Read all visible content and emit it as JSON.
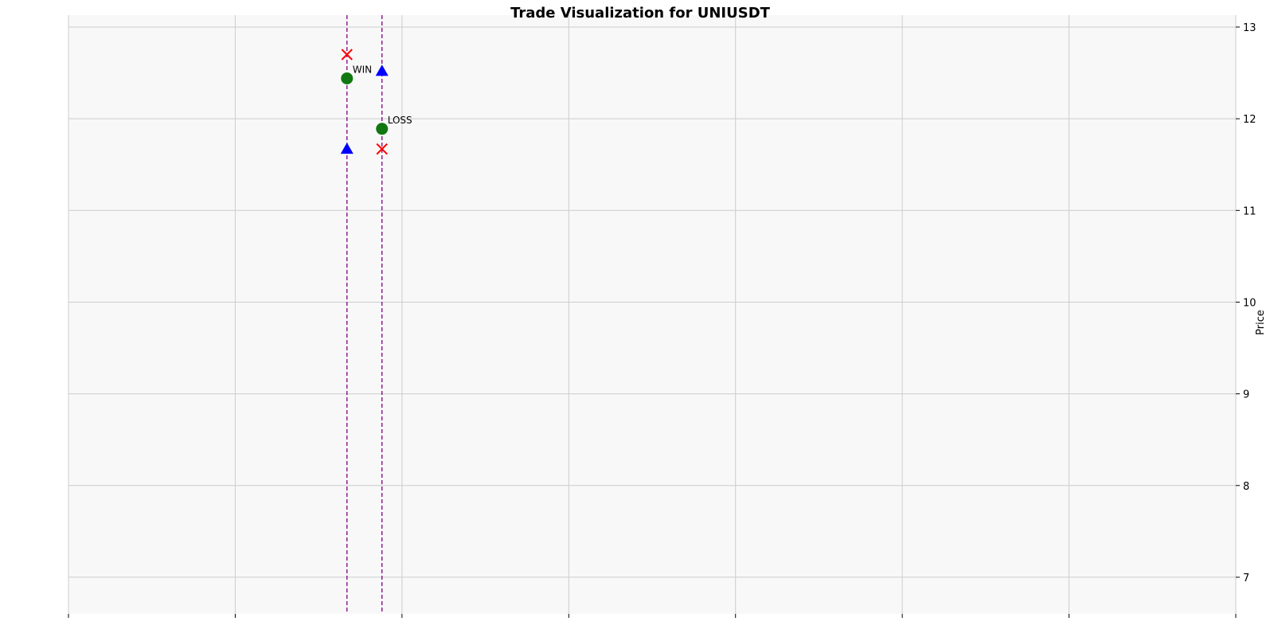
{
  "chart_data": {
    "type": "scatter",
    "title": "Trade Visualization for UNIUSDT",
    "xlabel": "",
    "ylabel": "Price",
    "y_axis_position": "right",
    "ylim": [
      6.6,
      13.13
    ],
    "xlim": [
      0,
      7
    ],
    "y_ticks": [
      7,
      8,
      9,
      10,
      11,
      12,
      13
    ],
    "y_tick_labels": [
      "7",
      "8",
      "9",
      "10",
      "11",
      "12",
      "13"
    ],
    "x_ticks": [
      0,
      1,
      2,
      3,
      4,
      5,
      6,
      7
    ],
    "x_tick_labels": [
      "",
      "",
      "",
      "",
      "",
      "",
      "",
      ""
    ],
    "grid": true,
    "background_color": "#f8f8f8",
    "grid_color": "#cccccc",
    "colors": {
      "entry": "#0000ff",
      "exit": "#ff0000",
      "result": "#117711",
      "trade_line": "#800080"
    },
    "trades": [
      {
        "x": 1.67,
        "entry": 11.67,
        "exit": 12.7,
        "result": 12.44,
        "outcome": "WIN"
      },
      {
        "x": 1.88,
        "entry": 12.52,
        "exit": 11.67,
        "result": 11.89,
        "outcome": "LOSS"
      }
    ]
  }
}
